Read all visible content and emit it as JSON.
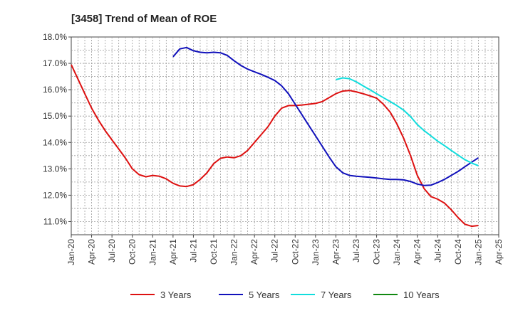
{
  "chart_data": {
    "type": "line",
    "title": "[3458]  Trend of Mean of ROE",
    "xlabel": "",
    "ylabel": "",
    "grid": true,
    "legend_position": "bottom",
    "x_ticks": [
      "Jan-20",
      "Apr-20",
      "Jul-20",
      "Oct-20",
      "Jan-21",
      "Apr-21",
      "Jul-21",
      "Oct-21",
      "Jan-22",
      "Apr-22",
      "Jul-22",
      "Oct-22",
      "Jan-23",
      "Apr-23",
      "Jul-23",
      "Oct-23",
      "Jan-24",
      "Apr-24",
      "Jul-24",
      "Oct-24",
      "Jan-25",
      "Apr-25"
    ],
    "y_ticks": [
      "11.0%",
      "12.0%",
      "13.0%",
      "14.0%",
      "15.0%",
      "16.0%",
      "17.0%",
      "18.0%"
    ],
    "ylim": [
      10.5,
      18.0
    ],
    "series": [
      {
        "name": "3 Years",
        "color": "#dd1111",
        "points": [
          [
            "Jan-20",
            16.95
          ],
          [
            "Feb-20",
            16.4
          ],
          [
            "Mar-20",
            15.85
          ],
          [
            "Apr-20",
            15.3
          ],
          [
            "May-20",
            14.85
          ],
          [
            "Jun-20",
            14.45
          ],
          [
            "Jul-20",
            14.1
          ],
          [
            "Aug-20",
            13.75
          ],
          [
            "Sep-20",
            13.4
          ],
          [
            "Oct-20",
            13.0
          ],
          [
            "Nov-20",
            12.78
          ],
          [
            "Dec-20",
            12.7
          ],
          [
            "Jan-21",
            12.75
          ],
          [
            "Feb-21",
            12.72
          ],
          [
            "Mar-21",
            12.62
          ],
          [
            "Apr-21",
            12.45
          ],
          [
            "May-21",
            12.35
          ],
          [
            "Jun-21",
            12.33
          ],
          [
            "Jul-21",
            12.4
          ],
          [
            "Aug-21",
            12.6
          ],
          [
            "Sep-21",
            12.85
          ],
          [
            "Oct-21",
            13.2
          ],
          [
            "Nov-21",
            13.4
          ],
          [
            "Dec-21",
            13.45
          ],
          [
            "Jan-22",
            13.42
          ],
          [
            "Feb-22",
            13.5
          ],
          [
            "Mar-22",
            13.7
          ],
          [
            "Apr-22",
            14.0
          ],
          [
            "May-22",
            14.3
          ],
          [
            "Jun-22",
            14.6
          ],
          [
            "Jul-22",
            15.0
          ],
          [
            "Aug-22",
            15.3
          ],
          [
            "Sep-22",
            15.4
          ],
          [
            "Oct-22",
            15.4
          ],
          [
            "Nov-22",
            15.42
          ],
          [
            "Dec-22",
            15.45
          ],
          [
            "Jan-23",
            15.48
          ],
          [
            "Feb-23",
            15.55
          ],
          [
            "Mar-23",
            15.7
          ],
          [
            "Apr-23",
            15.85
          ],
          [
            "May-23",
            15.95
          ],
          [
            "Jun-23",
            15.97
          ],
          [
            "Jul-23",
            15.92
          ],
          [
            "Aug-23",
            15.85
          ],
          [
            "Sep-23",
            15.77
          ],
          [
            "Oct-23",
            15.68
          ],
          [
            "Nov-23",
            15.45
          ],
          [
            "Dec-23",
            15.15
          ],
          [
            "Jan-24",
            14.7
          ],
          [
            "Feb-24",
            14.15
          ],
          [
            "Mar-24",
            13.5
          ],
          [
            "Apr-24",
            12.75
          ],
          [
            "May-24",
            12.25
          ],
          [
            "Jun-24",
            11.95
          ],
          [
            "Jul-24",
            11.85
          ],
          [
            "Aug-24",
            11.7
          ],
          [
            "Sep-24",
            11.45
          ],
          [
            "Oct-24",
            11.15
          ],
          [
            "Nov-24",
            10.9
          ],
          [
            "Dec-24",
            10.82
          ],
          [
            "Jan-25",
            10.85
          ]
        ]
      },
      {
        "name": "5 Years",
        "color": "#1111bb",
        "points": [
          [
            "Apr-21",
            17.25
          ],
          [
            "May-21",
            17.55
          ],
          [
            "Jun-21",
            17.6
          ],
          [
            "Jul-21",
            17.48
          ],
          [
            "Aug-21",
            17.42
          ],
          [
            "Sep-21",
            17.4
          ],
          [
            "Oct-21",
            17.42
          ],
          [
            "Nov-21",
            17.4
          ],
          [
            "Dec-21",
            17.3
          ],
          [
            "Jan-22",
            17.1
          ],
          [
            "Feb-22",
            16.92
          ],
          [
            "Mar-22",
            16.78
          ],
          [
            "Apr-22",
            16.68
          ],
          [
            "May-22",
            16.58
          ],
          [
            "Jun-22",
            16.47
          ],
          [
            "Jul-22",
            16.35
          ],
          [
            "Aug-22",
            16.15
          ],
          [
            "Sep-22",
            15.85
          ],
          [
            "Oct-22",
            15.45
          ],
          [
            "Nov-22",
            15.05
          ],
          [
            "Dec-22",
            14.65
          ],
          [
            "Jan-23",
            14.25
          ],
          [
            "Feb-23",
            13.85
          ],
          [
            "Mar-23",
            13.45
          ],
          [
            "Apr-23",
            13.08
          ],
          [
            "May-23",
            12.85
          ],
          [
            "Jun-23",
            12.75
          ],
          [
            "Jul-23",
            12.72
          ],
          [
            "Aug-23",
            12.7
          ],
          [
            "Sep-23",
            12.68
          ],
          [
            "Oct-23",
            12.65
          ],
          [
            "Nov-23",
            12.62
          ],
          [
            "Dec-23",
            12.6
          ],
          [
            "Jan-24",
            12.6
          ],
          [
            "Feb-24",
            12.58
          ],
          [
            "Mar-24",
            12.52
          ],
          [
            "Apr-24",
            12.42
          ],
          [
            "May-24",
            12.37
          ],
          [
            "Jun-24",
            12.38
          ],
          [
            "Jul-24",
            12.48
          ],
          [
            "Aug-24",
            12.6
          ],
          [
            "Sep-24",
            12.75
          ],
          [
            "Oct-24",
            12.9
          ],
          [
            "Nov-24",
            13.08
          ],
          [
            "Dec-24",
            13.25
          ],
          [
            "Jan-25",
            13.42
          ]
        ]
      },
      {
        "name": "7 Years",
        "color": "#11dddd",
        "points": [
          [
            "Apr-23",
            16.38
          ],
          [
            "May-23",
            16.45
          ],
          [
            "Jun-23",
            16.42
          ],
          [
            "Jul-23",
            16.3
          ],
          [
            "Aug-23",
            16.15
          ],
          [
            "Sep-23",
            16.0
          ],
          [
            "Oct-23",
            15.85
          ],
          [
            "Nov-23",
            15.7
          ],
          [
            "Dec-23",
            15.55
          ],
          [
            "Jan-24",
            15.4
          ],
          [
            "Feb-24",
            15.22
          ],
          [
            "Mar-24",
            14.98
          ],
          [
            "Apr-24",
            14.68
          ],
          [
            "May-24",
            14.45
          ],
          [
            "Jun-24",
            14.25
          ],
          [
            "Jul-24",
            14.05
          ],
          [
            "Aug-24",
            13.88
          ],
          [
            "Sep-24",
            13.7
          ],
          [
            "Oct-24",
            13.52
          ],
          [
            "Nov-24",
            13.35
          ],
          [
            "Dec-24",
            13.22
          ],
          [
            "Jan-25",
            13.12
          ]
        ]
      },
      {
        "name": "10 Years",
        "color": "#118811",
        "points": []
      }
    ]
  }
}
